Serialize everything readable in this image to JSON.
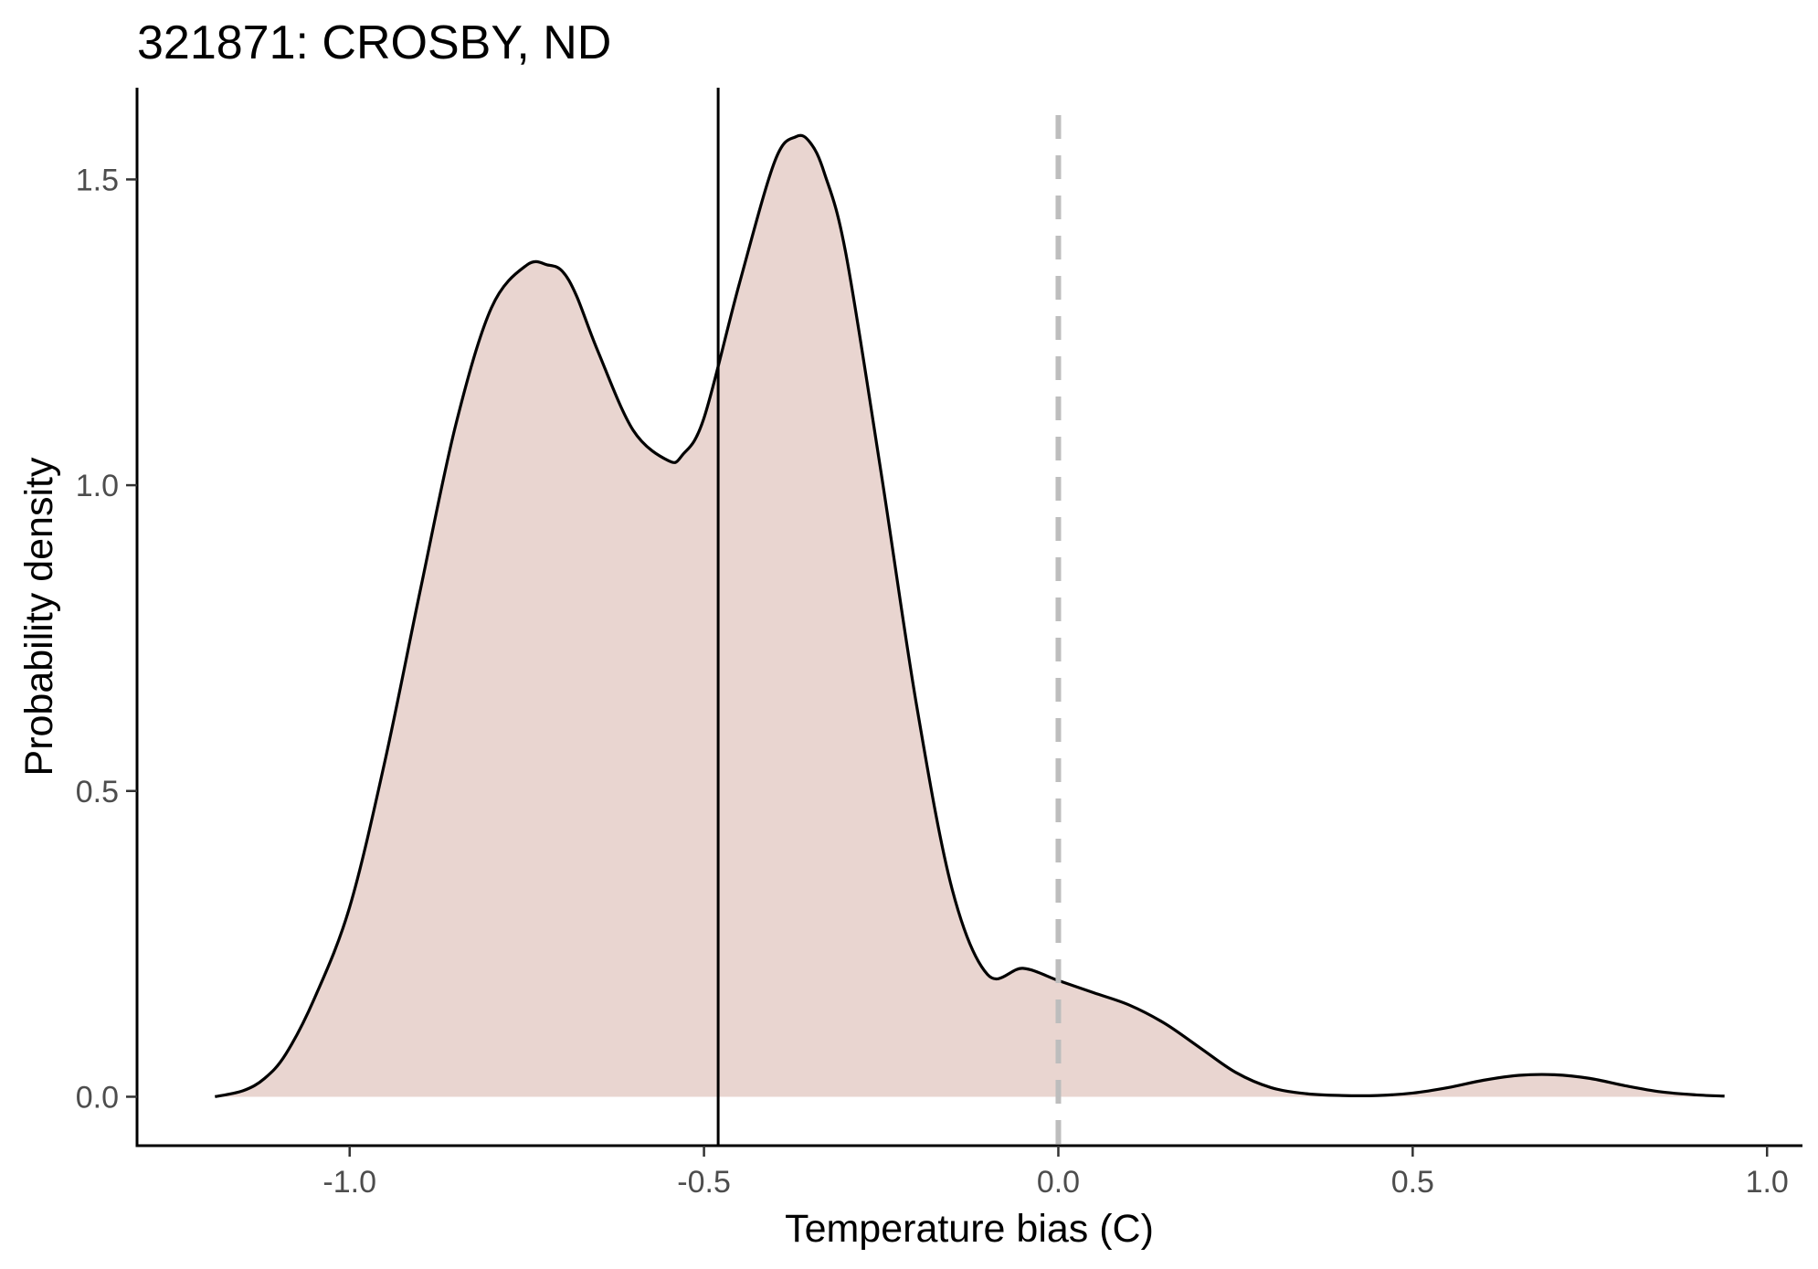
{
  "chart_data": {
    "type": "area",
    "title": "321871: CROSBY, ND",
    "xlabel": "Temperature bias (C)",
    "ylabel": "Probability density",
    "xlim": [
      -1.3,
      1.05
    ],
    "ylim": [
      -0.08,
      1.65
    ],
    "x_ticks": [
      -1.0,
      -0.5,
      0.0,
      0.5,
      1.0
    ],
    "x_tick_labels": [
      "-1.0",
      "-0.5",
      "0.0",
      "0.5",
      "1.0"
    ],
    "y_ticks": [
      0.0,
      0.5,
      1.0,
      1.5
    ],
    "y_tick_labels": [
      "0.0",
      "0.5",
      "1.0",
      "1.5"
    ],
    "grid": false,
    "fill_color": "#e9d5d0",
    "line_color": "#000000",
    "reference_lines": [
      {
        "x": -0.48,
        "style": "solid",
        "color": "#000000"
      },
      {
        "x": 0.0,
        "style": "dashed",
        "color": "#bdbdbd"
      }
    ],
    "series": [
      {
        "x": [
          -1.19,
          -1.15,
          -1.12,
          -1.09,
          -1.05,
          -1.0,
          -0.95,
          -0.9,
          -0.85,
          -0.8,
          -0.75,
          -0.72,
          -0.7,
          -0.68,
          -0.65,
          -0.6,
          -0.55,
          -0.53,
          -0.5,
          -0.45,
          -0.4,
          -0.37,
          -0.35,
          -0.33,
          -0.3,
          -0.25,
          -0.2,
          -0.15,
          -0.1,
          -0.05,
          0.0,
          0.05,
          0.1,
          0.15,
          0.2,
          0.25,
          0.3,
          0.35,
          0.4,
          0.45,
          0.5,
          0.55,
          0.6,
          0.65,
          0.7,
          0.75,
          0.8,
          0.85,
          0.9,
          0.94
        ],
        "y": [
          0.0,
          0.01,
          0.03,
          0.07,
          0.16,
          0.31,
          0.55,
          0.83,
          1.1,
          1.29,
          1.36,
          1.36,
          1.35,
          1.31,
          1.22,
          1.09,
          1.04,
          1.05,
          1.11,
          1.33,
          1.53,
          1.57,
          1.56,
          1.51,
          1.38,
          1.02,
          0.64,
          0.34,
          0.2,
          0.21,
          0.19,
          0.17,
          0.15,
          0.12,
          0.08,
          0.04,
          0.015,
          0.005,
          0.002,
          0.002,
          0.006,
          0.015,
          0.027,
          0.035,
          0.036,
          0.03,
          0.018,
          0.008,
          0.003,
          0.001
        ]
      }
    ]
  }
}
